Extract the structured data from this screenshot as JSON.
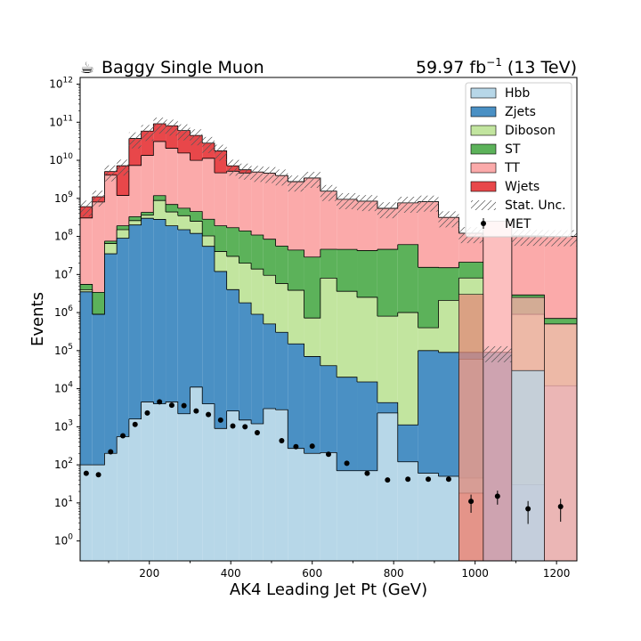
{
  "header": {
    "title_icon": "coffee-cup-icon",
    "title": "Baggy Single Muon",
    "lumi_value": "59.97 fb",
    "lumi_exp": "−1",
    "lumi_energy": " (13 TeV)"
  },
  "chart_data": {
    "type": "stacked-histogram",
    "xlabel": "AK4 Leading Jet Pt (GeV)",
    "ylabel": "Events",
    "y_scale": "log",
    "xlim": [
      30,
      1250
    ],
    "ylim": [
      0.3,
      1500000000000.0
    ],
    "x_ticks": [
      200,
      400,
      600,
      800,
      1000,
      1200
    ],
    "y_ticks": [
      {
        "v": 1,
        "e": "0"
      },
      {
        "v": 10,
        "e": "1"
      },
      {
        "v": 100,
        "e": "2"
      },
      {
        "v": 1000,
        "e": "3"
      },
      {
        "v": 10000,
        "e": "4"
      },
      {
        "v": 100000,
        "e": "5"
      },
      {
        "v": 1000000,
        "e": "6"
      },
      {
        "v": 10000000,
        "e": "7"
      },
      {
        "v": 100000000,
        "e": "8"
      },
      {
        "v": 1000000000,
        "e": "9"
      },
      {
        "v": 10000000000,
        "e": "10"
      },
      {
        "v": 100000000000,
        "e": "11"
      },
      {
        "v": 1000000000000,
        "e": "12"
      }
    ],
    "y_tick_base": "10",
    "legend_position": "top-right",
    "bin_edges": [
      30,
      60,
      90,
      120,
      150,
      180,
      210,
      240,
      270,
      300,
      330,
      360,
      390,
      420,
      450,
      480,
      510,
      540,
      580,
      620,
      660,
      710,
      760,
      810,
      860,
      910,
      960,
      1020,
      1090,
      1170,
      1250
    ],
    "series": [
      {
        "name": "Hbb",
        "color": "#b7d7e8",
        "values": [
          100,
          100,
          200,
          550,
          1600,
          4500,
          4000,
          4500,
          2200,
          11000,
          4000,
          900,
          2600,
          1500,
          1200,
          3000,
          2800,
          270,
          200,
          210,
          70,
          70,
          2300,
          120,
          60,
          50,
          45,
          0,
          30,
          0
        ]
      },
      {
        "name": "Zjets",
        "color": "#4a90c4",
        "values": [
          3500000,
          900000,
          35000000,
          90000000,
          200000000,
          300000000,
          280000000,
          190000000,
          150000000,
          120000000,
          55000000,
          12000000,
          4000000,
          1800000,
          900000,
          500000,
          300000,
          150000,
          70000,
          40000,
          20000,
          15000,
          2000,
          1000,
          100000,
          90000,
          90000,
          90000,
          0,
          0
        ]
      },
      {
        "name": "Diboson",
        "color": "#c2e59f",
        "values": [
          500000,
          0,
          30000000,
          60000000,
          60000000,
          60000000,
          600000000,
          250000000,
          200000000,
          130000000,
          48000000,
          28000000,
          26000000,
          18000000,
          13000000,
          9000000,
          5500000,
          3700000,
          650000,
          8000000,
          3600000,
          2500000,
          800000,
          1000000,
          300000,
          2000000,
          8000000,
          0,
          900000,
          500000
        ]
      },
      {
        "name": "ST",
        "color": "#5cb25a",
        "values": [
          1500000,
          2500000,
          10000000,
          40000000,
          70000000,
          70000000,
          300000000,
          250000000,
          200000000,
          200000000,
          180000000,
          150000000,
          140000000,
          120000000,
          95000000,
          75000000,
          50000000,
          40000000,
          28000000,
          38000000,
          42000000,
          40000000,
          45000000,
          60000000,
          15000000,
          13000000,
          13000000,
          0,
          2000000,
          200000
        ]
      },
      {
        "name": "TT",
        "color": "#fbaaaa",
        "values": [
          300000000,
          800000000,
          4000000000,
          1000000000,
          7000000000,
          13000000000,
          30000000000,
          20000000000,
          15000000000,
          9500000000,
          11000000000,
          4500000000,
          5000000000,
          4500000000,
          4800000000,
          4500000000,
          3900000000,
          2700000000,
          3400000000,
          1500000000,
          900000000,
          800000000,
          500000000,
          700000000,
          800000000,
          300000000,
          100000000,
          0,
          100000000,
          100000000
        ]
      },
      {
        "name": "Wjets",
        "color": "#e8474a",
        "values": [
          300000000,
          300000000,
          1000000000,
          6000000000,
          30000000000,
          45000000000,
          60000000000,
          60000000000,
          45000000000,
          35000000000,
          17000000000,
          13000000000,
          2000000000,
          1000000000,
          0,
          0,
          0,
          0,
          0,
          0,
          0,
          0,
          0,
          0,
          0,
          0,
          0,
          0,
          0,
          0
        ]
      }
    ],
    "overlay_bins": [
      {
        "series": "Hbb",
        "edges": [
          960,
          1020
        ],
        "color": "#b7d7e8",
        "value": 60000
      },
      {
        "series": "TT",
        "edges": [
          960,
          1020
        ],
        "color": "#fbaaaa",
        "value": 18
      },
      {
        "series": "TT",
        "edges": [
          1020,
          1090
        ],
        "color": "#fbaaaa",
        "value": 250000000
      },
      {
        "series": "TT",
        "edges": [
          1090,
          1170
        ],
        "color": "#fbaaaa",
        "value": 2500000
      },
      {
        "series": "Hbb",
        "edges": [
          1090,
          1170
        ],
        "color": "#b7d7e8",
        "value": 30000
      },
      {
        "series": "Hbb",
        "edges": [
          1170,
          1250
        ],
        "color": "#b7d7e8",
        "value": 12000
      },
      {
        "series": "TT",
        "edges": [
          1170,
          1250
        ],
        "color": "#fbaaaa",
        "value": 500000
      },
      {
        "series": "Zjets",
        "edges": [
          960,
          1020
        ],
        "color": "#e28a7a",
        "value": 3000000
      }
    ],
    "stat_unc": {
      "name": "Stat. Unc.",
      "rel": 0.45
    },
    "data_points": {
      "name": "MET",
      "x": [
        45,
        75,
        105,
        135,
        165,
        195,
        225,
        255,
        285,
        315,
        345,
        375,
        405,
        435,
        465,
        495,
        525,
        560,
        600,
        640,
        685,
        735,
        785,
        835,
        885,
        935,
        990,
        1055,
        1130,
        1210
      ],
      "y": [
        60,
        55,
        220,
        580,
        1150,
        2300,
        4500,
        3700,
        3600,
        2600,
        2100,
        1500,
        1050,
        1000,
        700,
        0,
        430,
        300,
        310,
        190,
        110,
        60,
        40,
        42,
        42,
        42,
        11,
        15,
        7,
        8
      ],
      "err_rel": [
        0,
        0,
        0,
        0,
        0,
        0,
        0,
        0,
        0,
        0,
        0,
        0,
        0,
        0,
        0,
        0,
        0,
        0,
        0,
        0,
        0,
        0,
        0,
        0,
        0,
        0,
        0.5,
        0.4,
        0.6,
        0.6
      ]
    }
  }
}
